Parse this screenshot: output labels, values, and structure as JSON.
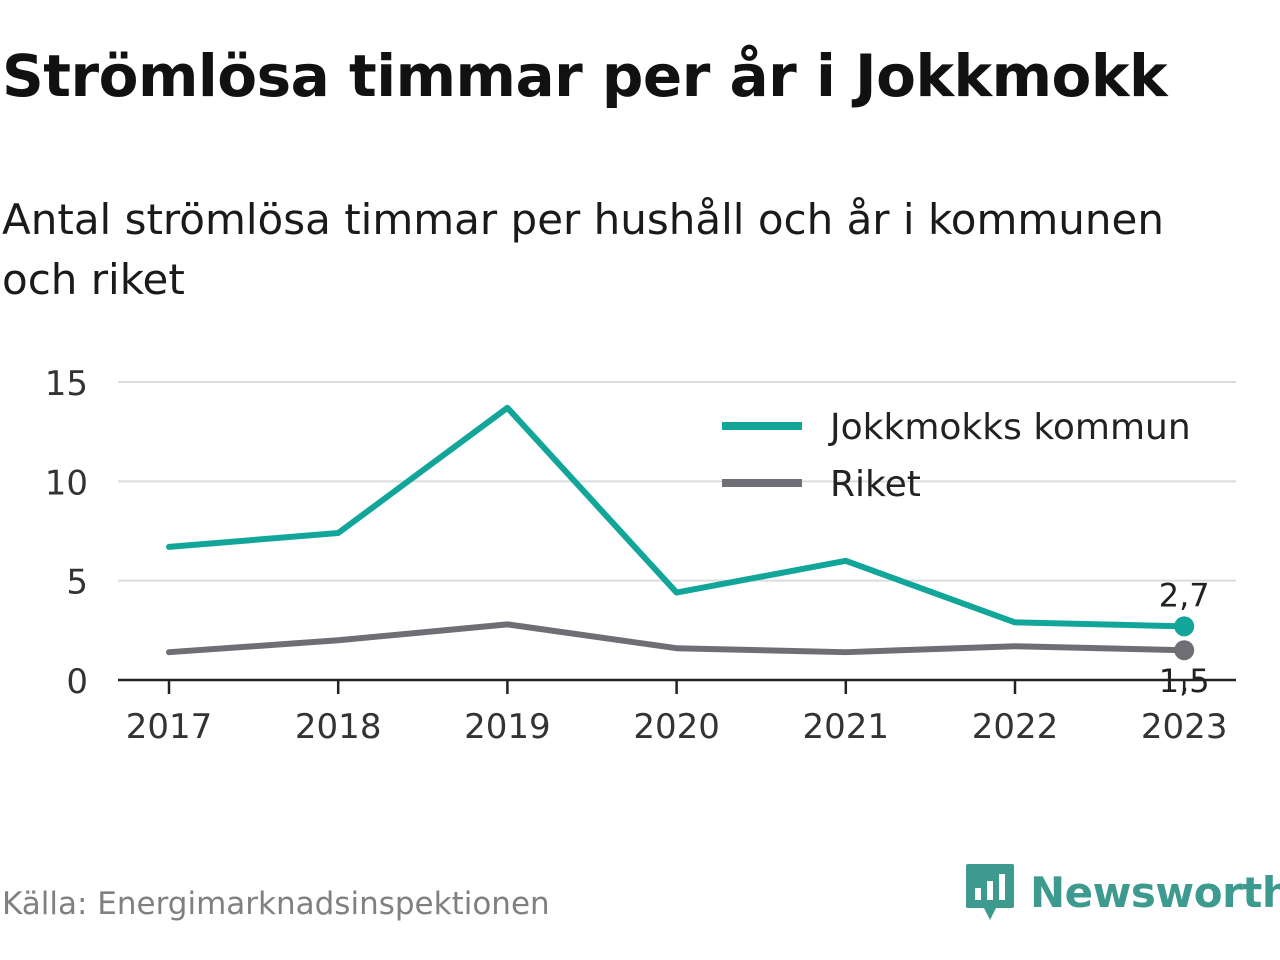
{
  "title": "Strömlösa timmar per år i Jokkmokk",
  "subtitle": "Antal strömlösa timmar per hushåll och år i kommunen och riket",
  "source": "Källa: Energimarknadsinspektionen",
  "brand": {
    "name": "Newsworthy",
    "icon": "newsworthy-logo-icon",
    "color": "#3c9a8f"
  },
  "chart_data": {
    "type": "line",
    "x": [
      "2017",
      "2018",
      "2019",
      "2020",
      "2021",
      "2022",
      "2023"
    ],
    "series": [
      {
        "name": "Jokkmokks kommun",
        "color": "#12a69a",
        "values": [
          6.7,
          7.4,
          13.7,
          4.4,
          6.0,
          2.9,
          2.7
        ],
        "end_label": "2,7"
      },
      {
        "name": "Riket",
        "color": "#6e6e74",
        "values": [
          1.4,
          2.0,
          2.8,
          1.6,
          1.4,
          1.7,
          1.5
        ],
        "end_label": "1,5"
      }
    ],
    "yticks": [
      "0",
      "5",
      "10",
      "15"
    ],
    "ylim": [
      0,
      15
    ],
    "grid": true,
    "legend": "top-right"
  }
}
